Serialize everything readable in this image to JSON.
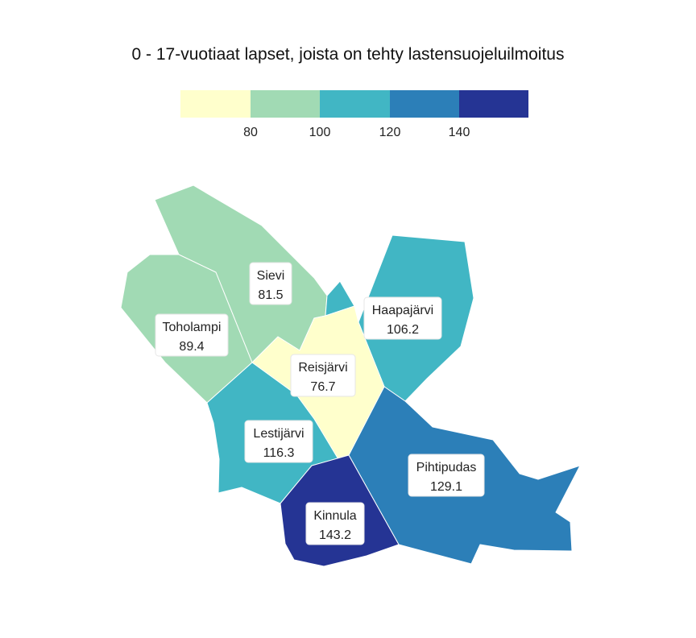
{
  "title": "0 - 17-vuotiaat lapset, joista on tehty lastensuojeluilmoitus",
  "legend": {
    "colors": [
      "#ffffcc",
      "#a1dab4",
      "#41b6c4",
      "#2c7fb8",
      "#253494"
    ],
    "ticks": [
      "80",
      "100",
      "120",
      "140"
    ]
  },
  "regions": [
    {
      "name": "Sievi",
      "value": "81.5"
    },
    {
      "name": "Toholampi",
      "value": "89.4"
    },
    {
      "name": "Haapajärvi",
      "value": "106.2"
    },
    {
      "name": "Reisjärvi",
      "value": "76.7"
    },
    {
      "name": "Lestijärvi",
      "value": "116.3"
    },
    {
      "name": "Pihtipudas",
      "value": "129.1"
    },
    {
      "name": "Kinnula",
      "value": "143.2"
    }
  ]
}
